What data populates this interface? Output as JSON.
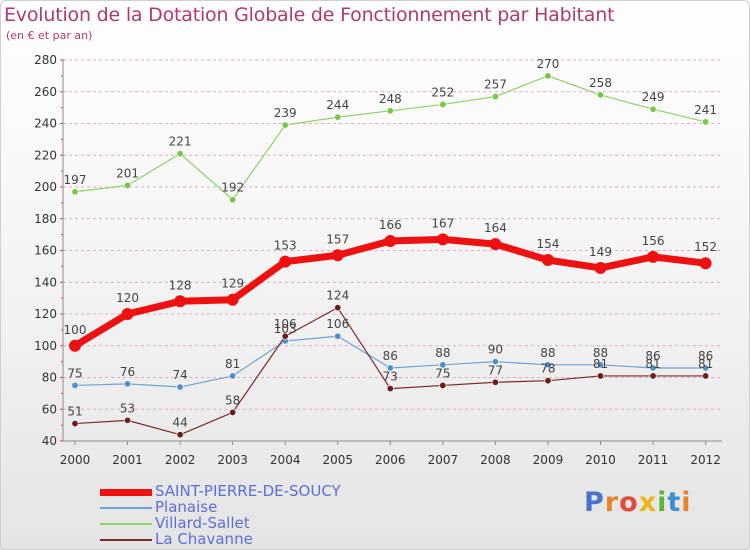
{
  "title": "Evolution de la Dotation Globale de Fonctionnement par Habitant",
  "subtitle": "(en € et par an)",
  "logo_text": "Proxiti",
  "colors": {
    "title": "#b03873",
    "grid": "#e6a8c7",
    "axis": "#8a8a8a",
    "tick_marks": "#d8337a"
  },
  "chart_data": {
    "type": "line",
    "title": "Evolution de la Dotation Globale de Fonctionnement par Habitant",
    "subtitle": "(en € et par an)",
    "x": [
      2000,
      2001,
      2002,
      2003,
      2004,
      2005,
      2006,
      2007,
      2008,
      2009,
      2010,
      2011,
      2012
    ],
    "x_tick_labels": [
      "2000",
      "2001",
      "2002",
      "2003",
      "2004",
      "2005",
      "2006",
      "2007",
      "2008",
      "2009",
      "2010",
      "2011",
      "2012"
    ],
    "ylim": [
      40,
      280
    ],
    "y_ticks": [
      40,
      60,
      80,
      100,
      120,
      140,
      160,
      180,
      200,
      220,
      240,
      260,
      280
    ],
    "grid": "horizontal dashed",
    "legend_position": "bottom-left",
    "series": [
      {
        "name": "Villard-Sallet",
        "color": "#8ed16a",
        "marker": "#79c548",
        "width": 1.2,
        "r": 3.2,
        "values": [
          197,
          201,
          221,
          192,
          239,
          244,
          248,
          252,
          257,
          270,
          258,
          249,
          241
        ]
      },
      {
        "name": "Planaise",
        "color": "#6fa4d2",
        "marker": "#4f8fc8",
        "width": 1.2,
        "r": 3.2,
        "values": [
          75,
          76,
          74,
          81,
          103,
          106,
          86,
          88,
          90,
          88,
          88,
          86,
          86
        ]
      },
      {
        "name": "La Chavanne",
        "color": "#7a2a2a",
        "marker": "#6b1c1c",
        "width": 1.2,
        "r": 3.2,
        "values": [
          51,
          53,
          44,
          58,
          106,
          124,
          73,
          75,
          77,
          78,
          81,
          81,
          81
        ]
      },
      {
        "name": "SAINT-PIERRE-DE-SOUCY",
        "color": "#ee1111",
        "marker": "#ee1111",
        "width": 7,
        "r": 6,
        "values": [
          100,
          120,
          128,
          129,
          153,
          157,
          166,
          167,
          164,
          154,
          149,
          156,
          152
        ]
      }
    ],
    "legend": [
      {
        "name": "SAINT-PIERRE-DE-SOUCY",
        "color": "#ee1111",
        "text_color": "#5b6fd6",
        "thickness": 7
      },
      {
        "name": "Planaise",
        "color": "#6fa4d2",
        "text_color": "#5b6fd6",
        "thickness": 2
      },
      {
        "name": "Villard-Sallet",
        "color": "#8ed16a",
        "text_color": "#5b6fd6",
        "thickness": 2
      },
      {
        "name": "La Chavanne",
        "color": "#7a2a2a",
        "text_color": "#5b6fd6",
        "thickness": 2
      }
    ]
  }
}
